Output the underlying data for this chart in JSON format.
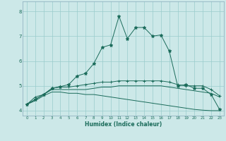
{
  "xlabel": "Humidex (Indice chaleur)",
  "bg_color": "#cce8e8",
  "grid_color": "#99cccc",
  "line_color": "#1a6b5a",
  "xlim": [
    -0.5,
    23.5
  ],
  "ylim": [
    3.8,
    8.4
  ],
  "xticks": [
    0,
    1,
    2,
    3,
    4,
    5,
    6,
    7,
    8,
    9,
    10,
    11,
    12,
    13,
    14,
    15,
    16,
    17,
    18,
    19,
    20,
    21,
    22,
    23
  ],
  "yticks": [
    4,
    5,
    6,
    7,
    8
  ],
  "series": [
    {
      "x": [
        0,
        1,
        2,
        3,
        4,
        5,
        6,
        7,
        8,
        9,
        10,
        11,
        12,
        13,
        14,
        15,
        16,
        17,
        18,
        19,
        20,
        21,
        22,
        23
      ],
      "y": [
        4.25,
        4.55,
        4.65,
        4.9,
        4.95,
        4.95,
        5.0,
        5.05,
        5.1,
        5.15,
        5.15,
        5.2,
        5.2,
        5.2,
        5.2,
        5.2,
        5.2,
        5.15,
        5.05,
        5.0,
        5.0,
        5.0,
        4.85,
        4.6
      ],
      "marker": "+",
      "markersize": 3.0
    },
    {
      "x": [
        0,
        1,
        2,
        3,
        4,
        5,
        6,
        7,
        8,
        9,
        10,
        11,
        12,
        13,
        14,
        15,
        16,
        17,
        18,
        19,
        20,
        21,
        22,
        23
      ],
      "y": [
        4.25,
        4.45,
        4.65,
        4.85,
        4.85,
        4.85,
        4.85,
        4.85,
        4.9,
        4.95,
        4.95,
        5.0,
        5.0,
        5.0,
        5.0,
        5.0,
        5.0,
        4.95,
        4.9,
        4.85,
        4.8,
        4.75,
        4.7,
        4.55
      ],
      "marker": null,
      "markersize": 0
    },
    {
      "x": [
        0,
        1,
        2,
        3,
        4,
        5,
        6,
        7,
        8,
        9,
        10,
        11,
        12,
        13,
        14,
        15,
        16,
        17,
        18,
        19,
        20,
        21,
        22,
        23
      ],
      "y": [
        4.25,
        4.4,
        4.6,
        4.75,
        4.75,
        4.7,
        4.7,
        4.65,
        4.65,
        4.6,
        4.55,
        4.5,
        4.45,
        4.4,
        4.35,
        4.3,
        4.25,
        4.2,
        4.15,
        4.1,
        4.05,
        4.02,
        4.0,
        4.0
      ],
      "marker": null,
      "markersize": 0
    },
    {
      "x": [
        0,
        1,
        2,
        3,
        4,
        5,
        6,
        7,
        8,
        9,
        10,
        11,
        12,
        13,
        14,
        15,
        16,
        17,
        18,
        19,
        20,
        21,
        22,
        23
      ],
      "y": [
        4.25,
        4.45,
        4.65,
        4.9,
        4.97,
        5.05,
        5.4,
        5.5,
        5.9,
        6.55,
        6.65,
        7.8,
        6.9,
        7.35,
        7.35,
        7.0,
        7.05,
        6.4,
        5.0,
        5.05,
        4.9,
        4.9,
        4.65,
        4.05
      ],
      "marker": "*",
      "markersize": 3.5
    }
  ]
}
